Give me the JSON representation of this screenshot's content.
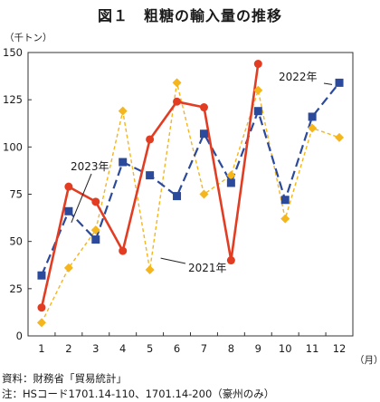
{
  "title": "図１　粗糖の輸入量の推移",
  "unit_label": "（千トン）",
  "x_unit_label": "（月）",
  "source": "資料：財務省「貿易統計」",
  "note": "注：HSコード1701.14-110、1701.14-200（豪州のみ）",
  "chart_data": {
    "type": "line",
    "title": "図１　粗糖の輸入量の推移",
    "xlabel": "（月）",
    "ylabel": "（千トン）",
    "ylim": [
      0,
      150
    ],
    "yticks": [
      0,
      25,
      50,
      75,
      100,
      125,
      150
    ],
    "x": [
      "1",
      "2",
      "3",
      "4",
      "5",
      "6",
      "7",
      "8",
      "9",
      "10",
      "11",
      "12"
    ],
    "grid": false,
    "series": [
      {
        "name": "2021年",
        "color": "#f5b51d",
        "style": "dotted",
        "marker": "diamond",
        "values": [
          7,
          36,
          56,
          119,
          35,
          134,
          75,
          85,
          130,
          62,
          110,
          105
        ]
      },
      {
        "name": "2022年",
        "color": "#2b4a9c",
        "style": "dashed",
        "marker": "square",
        "values": [
          32,
          66,
          51,
          92,
          85,
          74,
          107,
          81,
          119,
          72,
          116,
          134
        ]
      },
      {
        "name": "2023年",
        "color": "#e23d22",
        "style": "solid",
        "marker": "circle",
        "values": [
          15,
          79,
          71,
          45,
          104,
          124,
          121,
          40,
          144,
          null,
          null,
          null
        ]
      }
    ]
  }
}
